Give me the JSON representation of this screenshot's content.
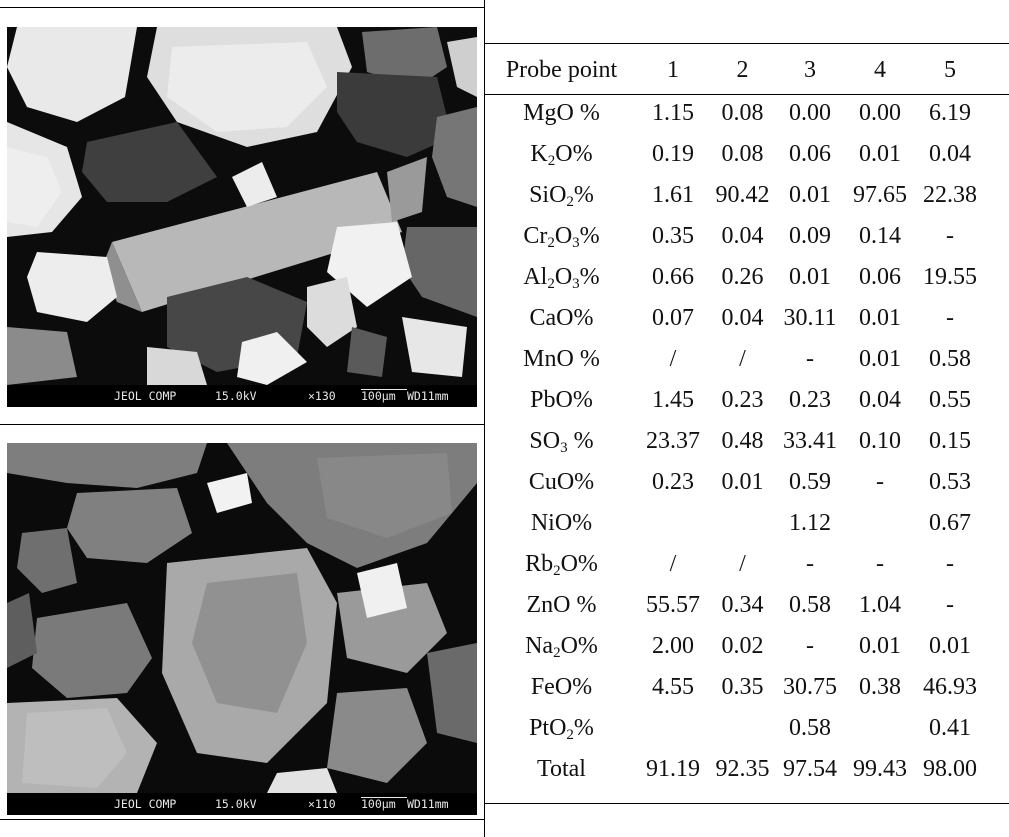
{
  "micrographs": [
    {
      "name": "upper",
      "info": {
        "detector": "JEOL COMP",
        "voltage": "15.0kV",
        "magnification": "×130",
        "scale": "100μm",
        "wd": "WD11mm"
      }
    },
    {
      "name": "lower",
      "info": {
        "detector": "JEOL COMP",
        "voltage": "15.0kV",
        "magnification": "×110",
        "scale": "100μm",
        "wd": "WD11mm"
      }
    }
  ],
  "table": {
    "header": [
      "Probe point",
      "1",
      "2",
      "3",
      "4",
      "5"
    ],
    "rows": [
      {
        "pre": "MgO %",
        "sub": "",
        "post": "",
        "values": [
          "1.15",
          "0.08",
          "0.00",
          "0.00",
          "6.19"
        ]
      },
      {
        "pre": "K",
        "sub": "2",
        "post": "O%",
        "values": [
          "0.19",
          "0.08",
          "0.06",
          "0.01",
          "0.04"
        ]
      },
      {
        "pre": "SiO",
        "sub": "2",
        "post": "%",
        "values": [
          "1.61",
          "90.42",
          "0.01",
          "97.65",
          "22.38"
        ]
      },
      {
        "pre": "Cr",
        "sub": "2",
        "post": "O₃%",
        "values": [
          "0.35",
          "0.04",
          "0.09",
          "0.14",
          "-"
        ]
      },
      {
        "pre": "Al",
        "sub": "2",
        "post": "O₃%",
        "values": [
          "0.66",
          "0.26",
          "0.01",
          "0.06",
          "19.55"
        ]
      },
      {
        "pre": "CaO%",
        "sub": "",
        "post": "",
        "values": [
          "0.07",
          "0.04",
          "30.11",
          "0.01",
          "-"
        ]
      },
      {
        "pre": "MnO %",
        "sub": "",
        "post": "",
        "values": [
          "/",
          "/",
          "-",
          "0.01",
          "0.58"
        ]
      },
      {
        "pre": "PbO%",
        "sub": "",
        "post": "",
        "values": [
          "1.45",
          "0.23",
          "0.23",
          "0.04",
          "0.55"
        ]
      },
      {
        "pre": "SO",
        "sub": "3",
        "post": " %",
        "values": [
          "23.37",
          "0.48",
          "33.41",
          "0.10",
          "0.15"
        ]
      },
      {
        "pre": "CuO%",
        "sub": "",
        "post": "",
        "values": [
          "0.23",
          "0.01",
          "0.59",
          "-",
          "0.53"
        ]
      },
      {
        "pre": "NiO%",
        "sub": "",
        "post": "",
        "values": [
          "",
          "",
          "1.12",
          "",
          "0.67"
        ]
      },
      {
        "pre": "Rb",
        "sub": "2",
        "post": "O%",
        "values": [
          "/",
          "/",
          "-",
          "-",
          "-"
        ]
      },
      {
        "pre": "ZnO   %",
        "sub": "",
        "post": "",
        "values": [
          "55.57",
          "0.34",
          "0.58",
          "1.04",
          "-"
        ]
      },
      {
        "pre": "Na",
        "sub": "2",
        "post": "O%",
        "values": [
          "2.00",
          "0.02",
          "-",
          "0.01",
          "0.01"
        ]
      },
      {
        "pre": "FeO%",
        "sub": "",
        "post": "",
        "values": [
          "4.55",
          "0.35",
          "30.75",
          "0.38",
          "46.93"
        ]
      },
      {
        "pre": "PtO",
        "sub": "2",
        "post": "%",
        "values": [
          "",
          "",
          "0.58",
          "",
          "0.41"
        ]
      },
      {
        "pre": "Total",
        "sub": "",
        "post": "",
        "values": [
          "91.19",
          "92.35",
          "97.54",
          "99.43",
          "98.00"
        ]
      }
    ]
  }
}
